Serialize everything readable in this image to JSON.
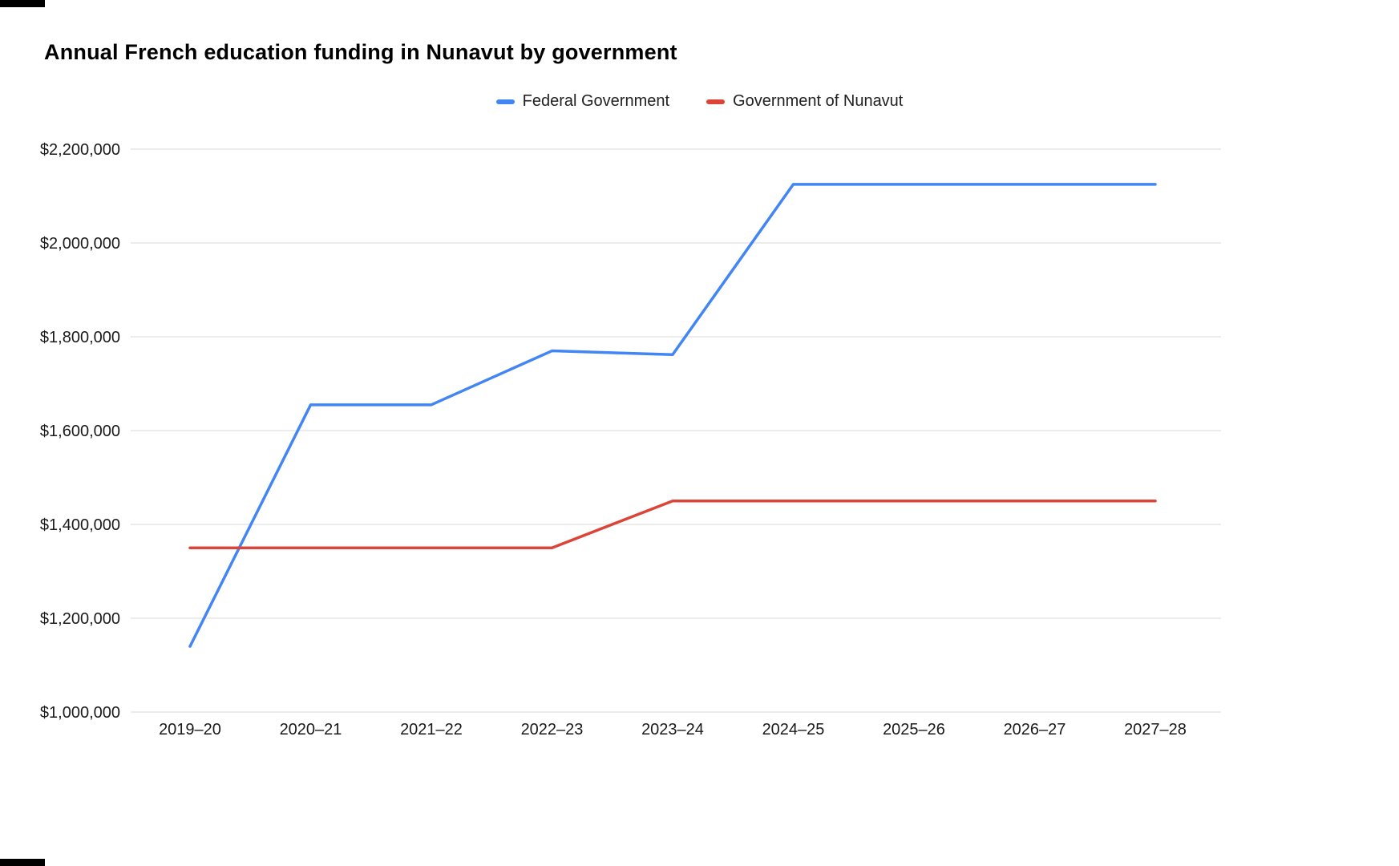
{
  "chart_data": {
    "type": "line",
    "title": "Annual French education funding in Nunavut by government",
    "categories": [
      "2019–20",
      "2020–21",
      "2021–22",
      "2022–23",
      "2023–24",
      "2024–25",
      "2025–26",
      "2026–27",
      "2027–28"
    ],
    "series": [
      {
        "name": "Federal Government",
        "color": "#4285F4",
        "values": [
          1140000,
          1655000,
          1655000,
          1770000,
          1762000,
          2125000,
          2125000,
          2125000,
          2125000
        ]
      },
      {
        "name": "Government of Nunavut",
        "color": "#DB4437",
        "values": [
          1350000,
          1350000,
          1350000,
          1350000,
          1450000,
          1450000,
          1450000,
          1450000,
          1450000
        ]
      }
    ],
    "y_axis": {
      "min": 1000000,
      "max": 2200000,
      "tick_step": 200000,
      "tick_labels": [
        "$1,000,000",
        "$1,200,000",
        "$1,400,000",
        "$1,600,000",
        "$1,800,000",
        "$2,000,000",
        "$2,200,000"
      ]
    },
    "x_axis_label": "",
    "y_axis_label": "",
    "grid": true,
    "legend_position": "top",
    "gridline_color": "#d9d9d9",
    "tick_label_color": "#1a1a1a"
  }
}
